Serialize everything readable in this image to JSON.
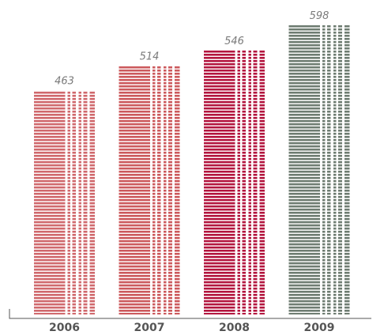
{
  "chart_data": {
    "type": "bar",
    "categories": [
      "2006",
      "2007",
      "2008",
      "2009"
    ],
    "values": [
      463,
      514,
      546,
      598
    ],
    "value_labels": [
      "463",
      "514",
      "546",
      "598"
    ],
    "title": "",
    "xlabel": "",
    "ylabel": "",
    "ylim": [
      0,
      598
    ],
    "grid": false,
    "legend": "none",
    "colors": [
      "#d0696d",
      "#cc5a5d",
      "#b3163f",
      "#6f7d72"
    ],
    "axis_color": "#555555"
  }
}
